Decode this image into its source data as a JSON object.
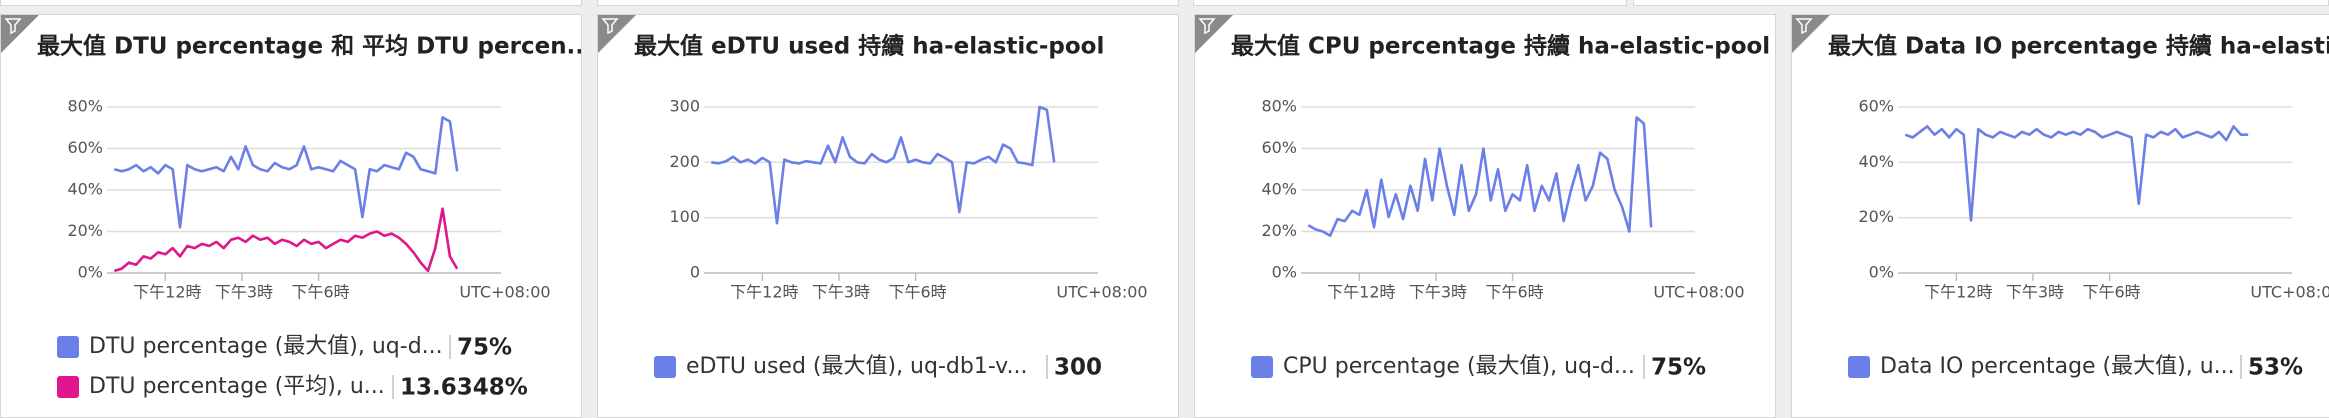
{
  "chart_data": [
    {
      "type": "line",
      "title": "最大值 DTU percentage 和 平均 DTU percen...",
      "x": [
        0,
        1,
        2,
        3,
        4,
        5,
        6,
        7,
        8,
        9,
        10,
        11,
        12,
        13,
        14,
        15,
        16,
        17,
        18,
        19,
        20,
        21,
        22,
        23,
        24,
        25,
        26,
        27,
        28,
        29,
        30,
        31,
        32,
        33,
        34,
        35,
        36,
        37,
        38,
        39,
        40,
        41,
        42,
        43,
        44,
        45,
        46,
        47
      ],
      "xlim": [
        -1,
        53
      ],
      "xticks": [
        {
          "value": 7,
          "label": "下午12時"
        },
        {
          "value": 17.5,
          "label": "下午3時"
        },
        {
          "value": 28,
          "label": "下午6時"
        }
      ],
      "timezone": "UTC+08:00",
      "ylim": [
        0,
        80
      ],
      "yticks": [
        {
          "value": 0,
          "label": "0%"
        },
        {
          "value": 20,
          "label": "20%"
        },
        {
          "value": 40,
          "label": "40%"
        },
        {
          "value": 60,
          "label": "60%"
        },
        {
          "value": 80,
          "label": "80%"
        }
      ],
      "grid": true,
      "series": [
        {
          "name": "DTU percentage (最大值), uq-d...",
          "summary": "75%",
          "color": "#6a7fe8",
          "values": [
            50,
            49,
            50,
            52,
            49,
            51,
            48,
            52,
            50,
            22,
            52,
            50,
            49,
            50,
            51,
            49,
            56,
            50,
            61,
            52,
            50,
            49,
            53,
            51,
            50,
            52,
            61,
            50,
            51,
            50,
            49,
            54,
            52,
            50,
            27,
            50,
            49,
            52,
            51,
            50,
            58,
            56,
            50,
            49,
            48,
            75,
            73,
            49
          ]
        },
        {
          "name": "DTU percentage (平均), u...",
          "summary": "13.6348%",
          "color": "#e0168c",
          "values": [
            1,
            2,
            5,
            4,
            8,
            7,
            10,
            9,
            12,
            8,
            13,
            12,
            14,
            13,
            15,
            12,
            16,
            17,
            15,
            18,
            16,
            17,
            14,
            16,
            15,
            13,
            16,
            14,
            15,
            12,
            14,
            16,
            15,
            18,
            17,
            19,
            20,
            18,
            19,
            17,
            14,
            10,
            5,
            1,
            12,
            31,
            8,
            2
          ]
        }
      ]
    },
    {
      "type": "line",
      "title": "最大值 eDTU used 持續 ha-elastic-pool",
      "x": [
        0,
        1,
        2,
        3,
        4,
        5,
        6,
        7,
        8,
        9,
        10,
        11,
        12,
        13,
        14,
        15,
        16,
        17,
        18,
        19,
        20,
        21,
        22,
        23,
        24,
        25,
        26,
        27,
        28,
        29,
        30,
        31,
        32,
        33,
        34,
        35,
        36,
        37,
        38,
        39,
        40,
        41,
        42,
        43,
        44,
        45,
        46,
        47
      ],
      "xlim": [
        -1,
        53
      ],
      "xticks": [
        {
          "value": 7,
          "label": "下午12時"
        },
        {
          "value": 17.5,
          "label": "下午3時"
        },
        {
          "value": 28,
          "label": "下午6時"
        }
      ],
      "timezone": "UTC+08:00",
      "ylim": [
        0,
        300
      ],
      "yticks": [
        0,
        100,
        200,
        300
      ],
      "grid": true,
      "series": [
        {
          "name": "eDTU used (最大值), uq-db1-v...",
          "summary": "300",
          "color": "#6a7fe8",
          "values": [
            200,
            198,
            202,
            210,
            200,
            205,
            198,
            208,
            200,
            90,
            205,
            200,
            198,
            202,
            200,
            198,
            230,
            200,
            245,
            210,
            200,
            198,
            215,
            205,
            200,
            208,
            245,
            200,
            205,
            200,
            198,
            215,
            208,
            200,
            110,
            200,
            198,
            205,
            210,
            200,
            232,
            225,
            200,
            198,
            195,
            300,
            295,
            200
          ]
        }
      ]
    },
    {
      "type": "line",
      "title": "最大值 CPU percentage 持續 ha-elastic-pool",
      "x": [
        0,
        1,
        2,
        3,
        4,
        5,
        6,
        7,
        8,
        9,
        10,
        11,
        12,
        13,
        14,
        15,
        16,
        17,
        18,
        19,
        20,
        21,
        22,
        23,
        24,
        25,
        26,
        27,
        28,
        29,
        30,
        31,
        32,
        33,
        34,
        35,
        36,
        37,
        38,
        39,
        40,
        41,
        42,
        43,
        44,
        45,
        46,
        47
      ],
      "xlim": [
        -1,
        53
      ],
      "xticks": [
        {
          "value": 7,
          "label": "下午12時"
        },
        {
          "value": 17.5,
          "label": "下午3時"
        },
        {
          "value": 28,
          "label": "下午6時"
        }
      ],
      "timezone": "UTC+08:00",
      "ylim": [
        0,
        80
      ],
      "yticks": [
        {
          "value": 0,
          "label": "0%"
        },
        {
          "value": 20,
          "label": "20%"
        },
        {
          "value": 40,
          "label": "40%"
        },
        {
          "value": 60,
          "label": "60%"
        },
        {
          "value": 80,
          "label": "80%"
        }
      ],
      "grid": true,
      "series": [
        {
          "name": "CPU percentage (最大值), uq-d...",
          "summary": "75%",
          "color": "#6a7fe8",
          "values": [
            23,
            21,
            20,
            18,
            26,
            25,
            30,
            28,
            40,
            22,
            45,
            27,
            38,
            26,
            42,
            30,
            55,
            35,
            60,
            42,
            28,
            52,
            30,
            38,
            60,
            35,
            50,
            30,
            38,
            35,
            52,
            30,
            42,
            35,
            48,
            25,
            40,
            52,
            35,
            42,
            58,
            55,
            40,
            32,
            20,
            75,
            72,
            22
          ]
        }
      ]
    },
    {
      "type": "line",
      "title": "最大值 Data IO percentage 持續 ha-elastic-...",
      "x": [
        0,
        1,
        2,
        3,
        4,
        5,
        6,
        7,
        8,
        9,
        10,
        11,
        12,
        13,
        14,
        15,
        16,
        17,
        18,
        19,
        20,
        21,
        22,
        23,
        24,
        25,
        26,
        27,
        28,
        29,
        30,
        31,
        32,
        33,
        34,
        35,
        36,
        37,
        38,
        39,
        40,
        41,
        42,
        43,
        44,
        45,
        46,
        47
      ],
      "xlim": [
        -1,
        53
      ],
      "xticks": [
        {
          "value": 7,
          "label": "下午12時"
        },
        {
          "value": 17.5,
          "label": "下午3時"
        },
        {
          "value": 28,
          "label": "下午6時"
        }
      ],
      "timezone": "UTC+08:00",
      "ylim": [
        0,
        60
      ],
      "yticks": [
        {
          "value": 0,
          "label": "0%"
        },
        {
          "value": 20,
          "label": "20%"
        },
        {
          "value": 40,
          "label": "40%"
        },
        {
          "value": 60,
          "label": "60%"
        }
      ],
      "grid": true,
      "series": [
        {
          "name": "Data IO percentage (最大值), u...",
          "summary": "53%",
          "color": "#6a7fe8",
          "values": [
            50,
            49,
            51,
            53,
            50,
            52,
            49,
            52,
            50,
            19,
            52,
            50,
            49,
            51,
            50,
            49,
            51,
            50,
            52,
            50,
            49,
            51,
            50,
            51,
            50,
            52,
            51,
            49,
            50,
            51,
            50,
            49,
            25,
            50,
            49,
            51,
            50,
            52,
            49,
            50,
            51,
            50,
            49,
            51,
            48,
            53,
            50,
            50
          ]
        }
      ]
    }
  ]
}
